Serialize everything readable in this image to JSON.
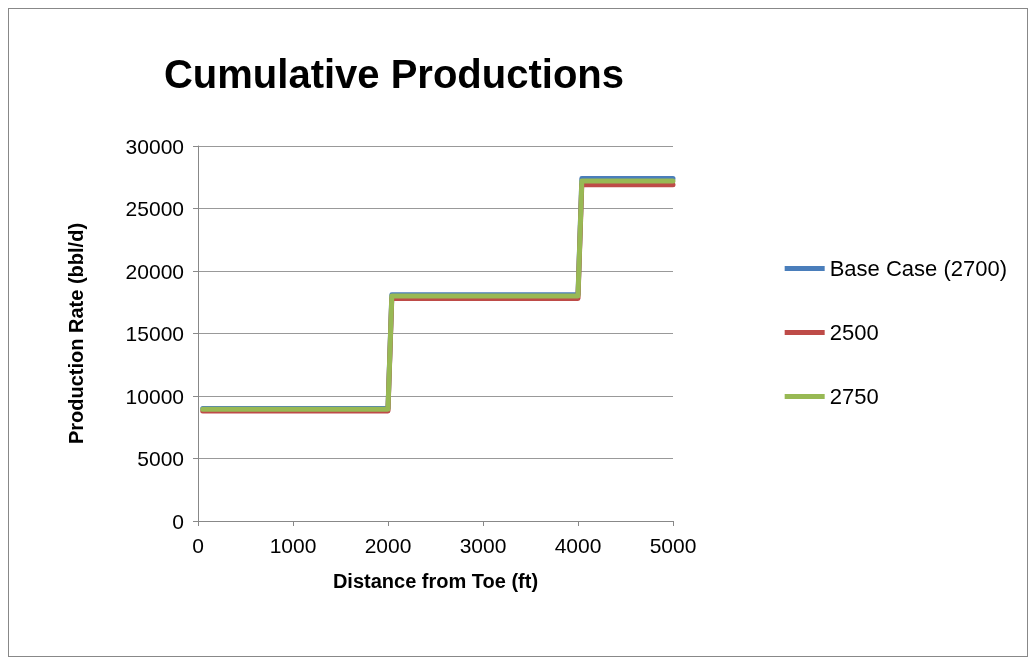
{
  "chart_data": {
    "type": "line",
    "title": "Cumulative Productions",
    "xlabel": "Distance from Toe (ft)",
    "ylabel": "Production Rate (bbl/d)",
    "xlim": [
      0,
      5000
    ],
    "xticks": [
      0,
      1000,
      2000,
      3000,
      4000,
      5000
    ],
    "ylim": [
      0,
      30000
    ],
    "yticks": [
      0,
      5000,
      10000,
      15000,
      20000,
      25000,
      30000
    ],
    "grid": "y",
    "legend": "right",
    "marker": "none",
    "line_style": "solid",
    "series": [
      {
        "name": "Base Case (2700)",
        "color": "#4a7ebb",
        "x": [
          50,
          2000,
          2040,
          4000,
          4040,
          5000
        ],
        "values": [
          9000,
          9000,
          18100,
          18100,
          27400,
          27400
        ]
      },
      {
        "name": "2500",
        "color": "#be4b48",
        "x": [
          50,
          2000,
          2040,
          4000,
          4040,
          5000
        ],
        "values": [
          8800,
          8800,
          17800,
          17800,
          26900,
          26900
        ]
      },
      {
        "name": "2750",
        "color": "#98b954",
        "x": [
          50,
          2000,
          2040,
          4000,
          4040,
          5000
        ],
        "values": [
          8950,
          8950,
          18000,
          18000,
          27200,
          27200
        ]
      }
    ]
  }
}
